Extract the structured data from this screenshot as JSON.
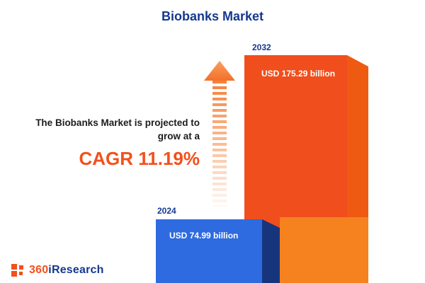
{
  "header": {
    "title": "Biobanks Market"
  },
  "annotation": {
    "line1": "The Biobanks Market is projected to",
    "line2": "grow at a",
    "cagr": "CAGR 11.19%"
  },
  "chart_data": {
    "type": "bar",
    "title": "Biobanks Market",
    "categories": [
      "2024",
      "2032"
    ],
    "values": [
      74.99,
      175.29
    ],
    "unit": "USD billion",
    "value_labels": [
      "USD 74.99 billion",
      "USD 175.29 billion"
    ],
    "growth_metric": "CAGR 11.19%",
    "ylim": [
      0,
      185
    ],
    "grid": false,
    "legend": "none",
    "colors": {
      "bar_2024": "#2e6be0",
      "bar_2024_side": "#17357d",
      "bar_2032": "#f04e1d",
      "bar_2032_side": "#ee5a12",
      "bar_2032_light": "#f5821f",
      "accent_orange": "#f1511b",
      "navy": "#15388f"
    }
  },
  "footer": {
    "logo_prefix": "360",
    "logo_suffix": "iResearch"
  }
}
